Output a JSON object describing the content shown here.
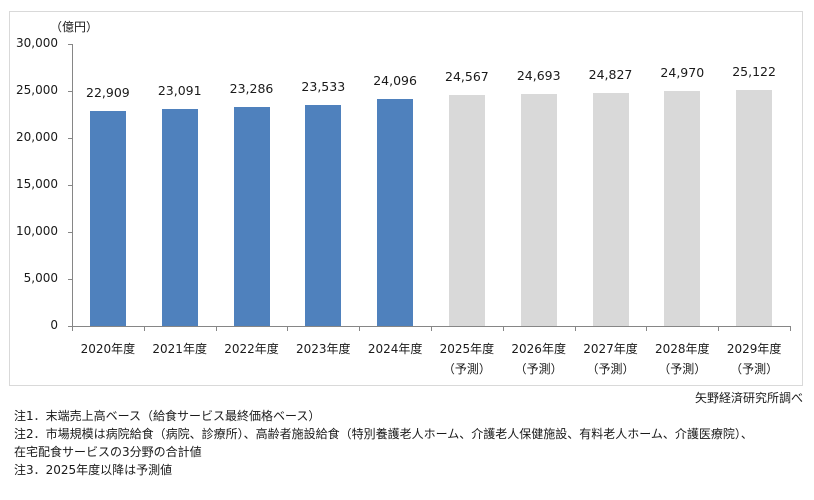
{
  "chart_data": {
    "type": "bar",
    "title": "",
    "unit_label": "（億円）",
    "xlabel": "",
    "ylabel": "億円",
    "ylim": [
      0,
      30000
    ],
    "yticks": [
      "0",
      "5,000",
      "10,000",
      "15,000",
      "20,000",
      "25,000",
      "30,000"
    ],
    "ytick_values": [
      0,
      5000,
      10000,
      15000,
      20000,
      25000,
      30000
    ],
    "categories": [
      "2020年度",
      "2021年度",
      "2022年度",
      "2023年度",
      "2024年度",
      "2025年度（予測）",
      "2026年度（予測）",
      "2027年度（予測）",
      "2028年度（予測）",
      "2029年度（予測）"
    ],
    "category_lines": [
      [
        "2020年度",
        ""
      ],
      [
        "2021年度",
        ""
      ],
      [
        "2022年度",
        ""
      ],
      [
        "2023年度",
        ""
      ],
      [
        "2024年度",
        ""
      ],
      [
        "2025年度",
        "（予測）"
      ],
      [
        "2026年度",
        "（予測）"
      ],
      [
        "2027年度",
        "（予測）"
      ],
      [
        "2028年度",
        "（予測）"
      ],
      [
        "2029年度",
        "（予測）"
      ]
    ],
    "values": [
      22909,
      23091,
      23286,
      23533,
      24096,
      24567,
      24693,
      24827,
      24970,
      25122
    ],
    "value_labels": [
      "22,909",
      "23,091",
      "23,286",
      "23,533",
      "24,096",
      "24,567",
      "24,693",
      "24,827",
      "24,970",
      "25,122"
    ],
    "forecast": [
      false,
      false,
      false,
      false,
      false,
      true,
      true,
      true,
      true,
      true
    ],
    "colors": {
      "actual": "#4f81bd",
      "forecast": "#d9d9d9"
    },
    "grid": false,
    "legend": null
  },
  "source": "矢野経済研究所調べ",
  "notes": [
    "注1．末端売上高ベース（給食サービス最終価格ベース）",
    "注2．市場規模は病院給食（病院、診療所）、高齢者施設給食（特別養護老人ホーム、介護老人保健施設、有料老人ホーム、介護医療院）、",
    "在宅配食サービスの3分野の合計値",
    "注3．2025年度以降は予測値"
  ]
}
